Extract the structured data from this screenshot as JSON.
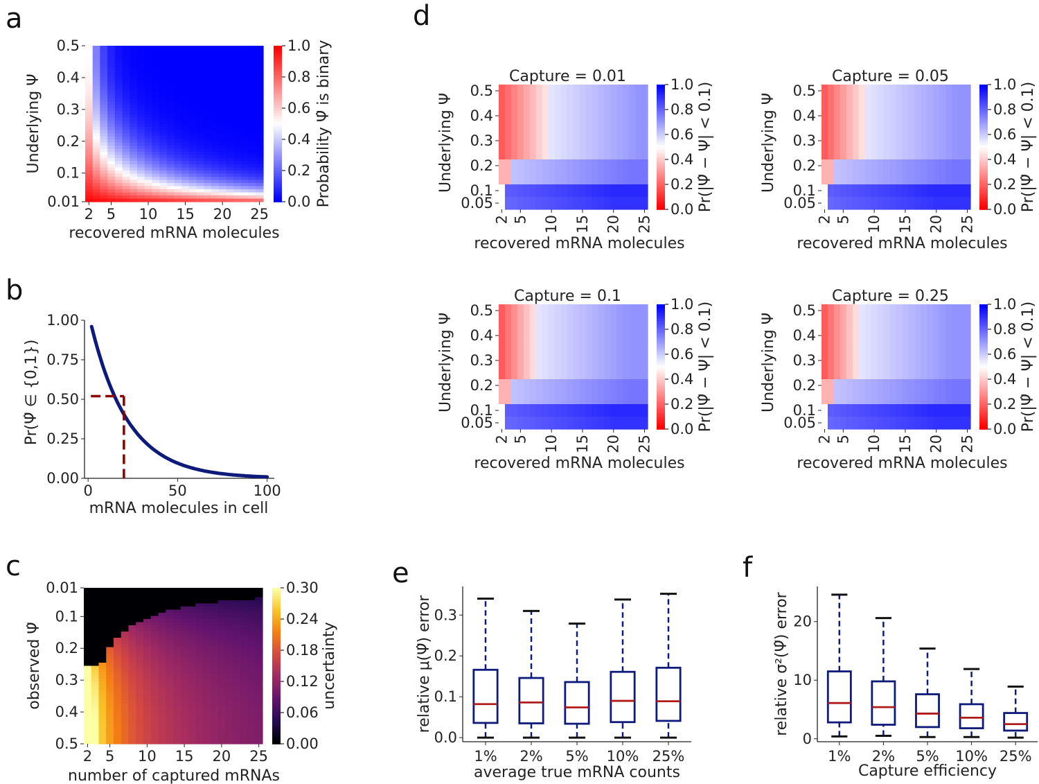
{
  "panel_labels": [
    "a",
    "b",
    "c",
    "d",
    "e",
    "f"
  ],
  "chart_data": [
    {
      "id": "a",
      "type": "heatmap",
      "xlabel": "recovered mRNA molecules",
      "ylabel": "Underlying Ψ",
      "xticks": [
        "2",
        "5",
        "10",
        "15",
        "20",
        "25"
      ],
      "yticks": [
        "0.5",
        "0.4",
        "0.3",
        "0.2",
        "0.1",
        "0.01"
      ],
      "x_range": [
        2,
        25
      ],
      "y_range": [
        0.01,
        0.5
      ],
      "colormap": "bwr",
      "colorbar": {
        "label": "Probability Ψ̂ is binary",
        "ticks": [
          "1.0",
          "0.8",
          "0.6",
          "0.4",
          "0.2",
          "0.0"
        ],
        "range": [
          0,
          1
        ]
      },
      "cell_value": "Ψ^n + (1-Ψ)^n"
    },
    {
      "id": "b",
      "type": "line",
      "xlabel": "mRNA molecules in cell",
      "ylabel": "Pr(Ψ̂ ∈ {0,1})",
      "xticks": [
        "0",
        "50",
        "100"
      ],
      "yticks": [
        "1.00",
        "0.75",
        "0.50",
        "0.25",
        "0.00"
      ],
      "xlim": [
        -2,
        104
      ],
      "ylim": [
        0,
        1
      ],
      "curve": {
        "x_start": 2,
        "x_end": 100,
        "y_start": 0.96,
        "decay": 0.048,
        "color": "#0d1a7a"
      },
      "marker_point": {
        "x": 20,
        "y": 0.52,
        "color": "#8b0000"
      }
    },
    {
      "id": "c",
      "type": "heatmap",
      "xlabel": "number of captured mRNAs",
      "ylabel": "observed Ψ̂",
      "xticks": [
        "2",
        "5",
        "10",
        "15",
        "20",
        "25"
      ],
      "yticks": [
        "0.01",
        "0.1",
        "0.2",
        "0.3",
        "0.4",
        "0.5"
      ],
      "x_range": [
        2,
        25
      ],
      "y_range": [
        0.01,
        0.5
      ],
      "colormap": "inferno",
      "colorbar": {
        "label": "uncertainty",
        "ticks": [
          "0.30",
          "0.24",
          "0.18",
          "0.12",
          "0.06",
          "0.00"
        ],
        "range": [
          0,
          0.3
        ]
      }
    },
    {
      "id": "d",
      "type": "heatmap",
      "colormap": "bwr_r",
      "xlabel": "recovered mRNA molecules",
      "ylabel": "Underlying Ψ",
      "xticks": [
        "2",
        "5",
        "10",
        "15",
        "20",
        "25"
      ],
      "yticks": [
        "0.5",
        "0.4",
        "0.3",
        "0.2",
        "0.1",
        "0.05"
      ],
      "colorbar": {
        "label": "Pr(|Ψ̂ − Ψ| < 0.1)",
        "ticks": [
          "1.0",
          "0.8",
          "0.6",
          "0.4",
          "0.2",
          "0.0"
        ],
        "range": [
          0,
          1
        ]
      },
      "subplots": [
        {
          "title": "Capture = 0.01"
        },
        {
          "title": "Capture = 0.05"
        },
        {
          "title": "Capture = 0.1"
        },
        {
          "title": "Capture = 0.25"
        }
      ]
    },
    {
      "id": "e",
      "type": "box",
      "xlabel": "average true mRNA counts",
      "ylabel": "relative μ(Ψ̂) error",
      "categories": [
        "1%",
        "2%",
        "5%",
        "10%",
        "25%"
      ],
      "yticks": [
        "0.0",
        "0.1",
        "0.2",
        "0.3"
      ],
      "ylim": [
        -0.01,
        0.37
      ],
      "boxes": [
        {
          "min": 0.0,
          "q1": 0.036,
          "median": 0.082,
          "q3": 0.166,
          "max": 0.34
        },
        {
          "min": 0.0,
          "q1": 0.035,
          "median": 0.086,
          "q3": 0.146,
          "max": 0.31
        },
        {
          "min": 0.0,
          "q1": 0.034,
          "median": 0.074,
          "q3": 0.136,
          "max": 0.279
        },
        {
          "min": 0.0,
          "q1": 0.038,
          "median": 0.09,
          "q3": 0.161,
          "max": 0.338
        },
        {
          "min": 0.0,
          "q1": 0.041,
          "median": 0.089,
          "q3": 0.171,
          "max": 0.352
        }
      ]
    },
    {
      "id": "f",
      "type": "box",
      "xlabel": "Capture efficiency",
      "ylabel": "relative σ²(Ψ̂) error",
      "categories": [
        "1%",
        "2%",
        "5%",
        "10%",
        "25%"
      ],
      "yticks": [
        "0",
        "10",
        "20"
      ],
      "ylim": [
        -0.5,
        26
      ],
      "boxes": [
        {
          "min": 0.4,
          "q1": 2.8,
          "median": 6.1,
          "q3": 11.5,
          "max": 24.6
        },
        {
          "min": 0.5,
          "q1": 2.4,
          "median": 5.4,
          "q3": 9.8,
          "max": 20.6
        },
        {
          "min": 0.3,
          "q1": 2.0,
          "median": 4.3,
          "q3": 7.6,
          "max": 15.4
        },
        {
          "min": 0.3,
          "q1": 1.8,
          "median": 3.6,
          "q3": 5.9,
          "max": 11.9
        },
        {
          "min": 0.2,
          "q1": 1.4,
          "median": 2.5,
          "q3": 4.4,
          "max": 8.9
        }
      ]
    }
  ],
  "colors": {
    "box": "#0d1a7a",
    "median": "#b01a1a",
    "curve": "#0d1a7a",
    "dashed": "#8b0000"
  }
}
